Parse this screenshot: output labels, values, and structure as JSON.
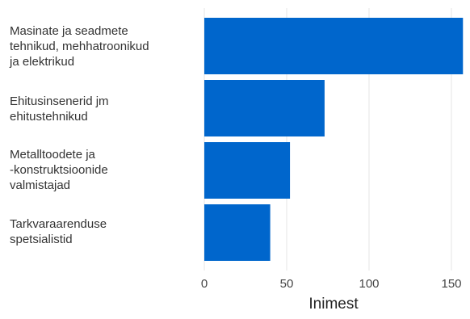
{
  "chart_data": {
    "type": "bar",
    "orientation": "horizontal",
    "categories": [
      "Masinate ja seadmete tehnikud, mehhatroonikud ja elektrikud",
      "Ehitusinsenerid jm ehitustehnikud",
      "Metalltoodete ja -konstruktsioonide valmistajad",
      "Tarkvaraarenduse spetsialistid"
    ],
    "category_lines": [
      [
        "Masinate ja seadmete",
        "tehnikud, mehhatroonikud",
        "ja elektrikud"
      ],
      [
        "Ehitusinsenerid jm",
        "ehitustehnikud"
      ],
      [
        "Metalltoodete ja",
        "-konstruktsioonide",
        "valmistajad"
      ],
      [
        "Tarkvaraarenduse",
        "spetsialistid"
      ]
    ],
    "values": [
      157,
      73,
      52,
      40
    ],
    "xlabel": "Inimest",
    "xticks": [
      "0",
      "50",
      "100",
      "150"
    ],
    "xlim": [
      0,
      157
    ],
    "grid": true,
    "bar_color": "#0066CC",
    "grid_color": "#E6E6E6"
  }
}
